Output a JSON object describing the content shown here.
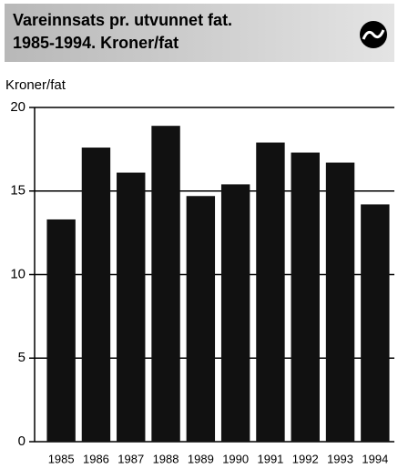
{
  "chart_data": {
    "type": "bar",
    "title": [
      "Vareinnsats pr. utvunnet fat.",
      "1985-1994. Kroner/fat"
    ],
    "y_label": "Kroner/fat",
    "categories": [
      "1985",
      "1986",
      "1987",
      "1988",
      "1989",
      "1990",
      "1991",
      "1992",
      "1993",
      "1994"
    ],
    "values": [
      13.3,
      17.6,
      16.1,
      18.9,
      14.7,
      15.4,
      17.9,
      17.3,
      16.7,
      14.2
    ],
    "color": "#111111",
    "ylim": [
      0,
      20
    ],
    "yticks": [
      0,
      5,
      10,
      15,
      20
    ],
    "grid": true
  }
}
